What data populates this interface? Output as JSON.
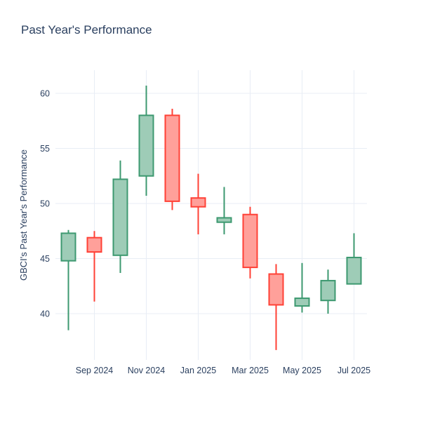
{
  "title": "Past Year's Performance",
  "chart_data": {
    "type": "candlestick",
    "title": "Past Year's Performance",
    "xlabel": "",
    "ylabel": "GBCI's Past Year's Performance",
    "x": [
      "Aug 2024",
      "Sep 2024",
      "Oct 2024",
      "Nov 2024",
      "Dec 2024",
      "Jan 2025",
      "Feb 2025",
      "Mar 2025",
      "Apr 2025",
      "May 2025",
      "Jun 2025",
      "Jul 2025"
    ],
    "open": [
      44.8,
      46.9,
      45.3,
      52.5,
      58.0,
      50.5,
      48.3,
      49.0,
      43.6,
      40.7,
      41.2,
      42.7
    ],
    "high": [
      47.6,
      47.5,
      53.9,
      60.7,
      58.6,
      52.7,
      51.5,
      49.7,
      44.5,
      44.6,
      44.0,
      47.3
    ],
    "low": [
      38.5,
      41.1,
      43.7,
      50.7,
      49.4,
      47.2,
      47.2,
      43.2,
      36.7,
      40.1,
      40.0,
      42.7
    ],
    "close": [
      47.3,
      45.6,
      52.2,
      58.0,
      50.2,
      49.7,
      48.7,
      44.2,
      40.8,
      41.4,
      43.0,
      45.1
    ],
    "x_tick_labels": [
      "Sep 2024",
      "Nov 2024",
      "Jan 2025",
      "Mar 2025",
      "May 2025",
      "Jul 2025"
    ],
    "x_tick_indices": [
      1,
      3,
      5,
      7,
      9,
      11
    ],
    "y_ticks": [
      40,
      45,
      50,
      55,
      60
    ],
    "ylim": [
      35.8,
      62.1
    ],
    "grid": true,
    "legend": "none",
    "increasing_color": "#3D9970",
    "decreasing_color": "#FF4136",
    "increasing_fill": "#9ECCB7",
    "decreasing_fill": "#FFA09A",
    "grid_color": "#E8EDF5",
    "text_color": "#2a3f5f"
  }
}
